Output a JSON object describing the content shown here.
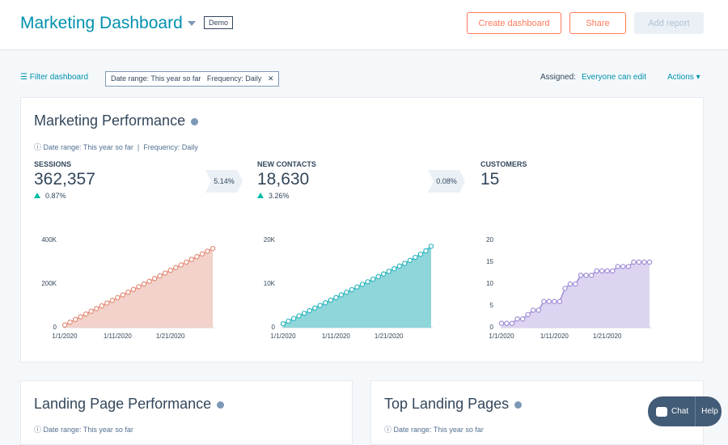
{
  "header": {
    "title": "Marketing Dashboard",
    "badge": "Demo",
    "buttons": [
      "Create dashboard",
      "Share",
      "Add report"
    ]
  },
  "filter_bar": {
    "filter_link": "Filter dashboard",
    "chip_date": "Date range: This year so far",
    "chip_frequency": "Frequency: Daily",
    "assigned_label": "Assigned:",
    "assigned_value": "Everyone can edit",
    "actions": "Actions"
  },
  "performance": {
    "title": "Marketing Performance",
    "date_range": "Date range: This year so far",
    "frequency": "Frequency: Daily",
    "metrics": [
      {
        "label": "SESSIONS",
        "value": "362,357",
        "change": "0.87%"
      },
      {
        "label": "NEW CONTACTS",
        "value": "18,630",
        "change": "3.26%"
      },
      {
        "label": "CUSTOMERS",
        "value": "15"
      }
    ],
    "conversions": [
      "5.14%",
      "0.08%"
    ],
    "charts": [
      {
        "type": "area",
        "color": "#e38b78",
        "fill": "#f2d2ca",
        "categories": [
          "1/1/2020",
          null,
          null,
          null,
          null,
          null,
          null,
          null,
          null,
          null,
          "1/11/2020",
          null,
          null,
          null,
          null,
          null,
          null,
          null,
          null,
          null,
          "1/21/2020",
          null,
          null,
          null,
          null,
          null,
          null,
          null,
          null
        ],
        "values": [
          12000,
          25000,
          37500,
          50000,
          62500,
          75000,
          87500,
          100000,
          112500,
          125000,
          137500,
          150000,
          162500,
          175000,
          187500,
          200000,
          212500,
          225000,
          237500,
          250000,
          262500,
          275000,
          287500,
          300000,
          312500,
          325000,
          337500,
          350000,
          362357
        ],
        "ylim": [
          0,
          400000
        ],
        "yticks": [
          0,
          {
            "value": 200000,
            "label": "200K"
          },
          {
            "value": 400000,
            "label": "400K"
          }
        ]
      },
      {
        "type": "area",
        "color": "#2fb5bf",
        "fill": "#8ed6da",
        "categories": [
          "1/1/2020",
          null,
          null,
          null,
          null,
          null,
          null,
          null,
          null,
          null,
          "1/11/2020",
          null,
          null,
          null,
          null,
          null,
          null,
          null,
          null,
          null,
          "1/21/2020",
          null,
          null,
          null,
          null,
          null,
          null,
          null,
          null
        ],
        "values": [
          900,
          1500,
          2100,
          2700,
          3300,
          3900,
          4500,
          5100,
          5700,
          6300,
          6900,
          7500,
          8100,
          8700,
          9300,
          9900,
          10500,
          11100,
          11700,
          12300,
          12900,
          13500,
          14100,
          14700,
          15400,
          16100,
          16800,
          17600,
          18630
        ],
        "ylim": [
          0,
          20000
        ],
        "yticks": [
          0,
          {
            "value": 10000,
            "label": "10K"
          },
          {
            "value": 20000,
            "label": "20K"
          }
        ]
      },
      {
        "type": "area",
        "color": "#a08cd6",
        "fill": "#ddd4f1",
        "categories": [
          "1/1/2020",
          null,
          null,
          null,
          null,
          null,
          null,
          null,
          null,
          null,
          "1/11/2020",
          null,
          null,
          null,
          null,
          null,
          null,
          null,
          null,
          null,
          "1/21/2020",
          null,
          null,
          null,
          null,
          null,
          null,
          null,
          null
        ],
        "values": [
          1,
          1,
          1,
          2,
          2,
          3,
          4,
          4,
          6,
          6,
          6,
          6,
          9,
          10,
          10,
          12,
          12,
          12,
          13,
          13,
          13,
          13,
          14,
          14,
          14,
          15,
          15,
          15,
          15
        ],
        "ylim": [
          0,
          20
        ],
        "yticks": [
          0,
          5,
          10,
          15,
          20
        ]
      }
    ]
  },
  "landing_performance": {
    "title": "Landing Page Performance",
    "date_range": "Date range: This year so far"
  },
  "top_pages": {
    "title": "Top Landing Pages",
    "date_range": "Date range: This year so far"
  },
  "chat": {
    "chat": "Chat",
    "help": "Help"
  }
}
